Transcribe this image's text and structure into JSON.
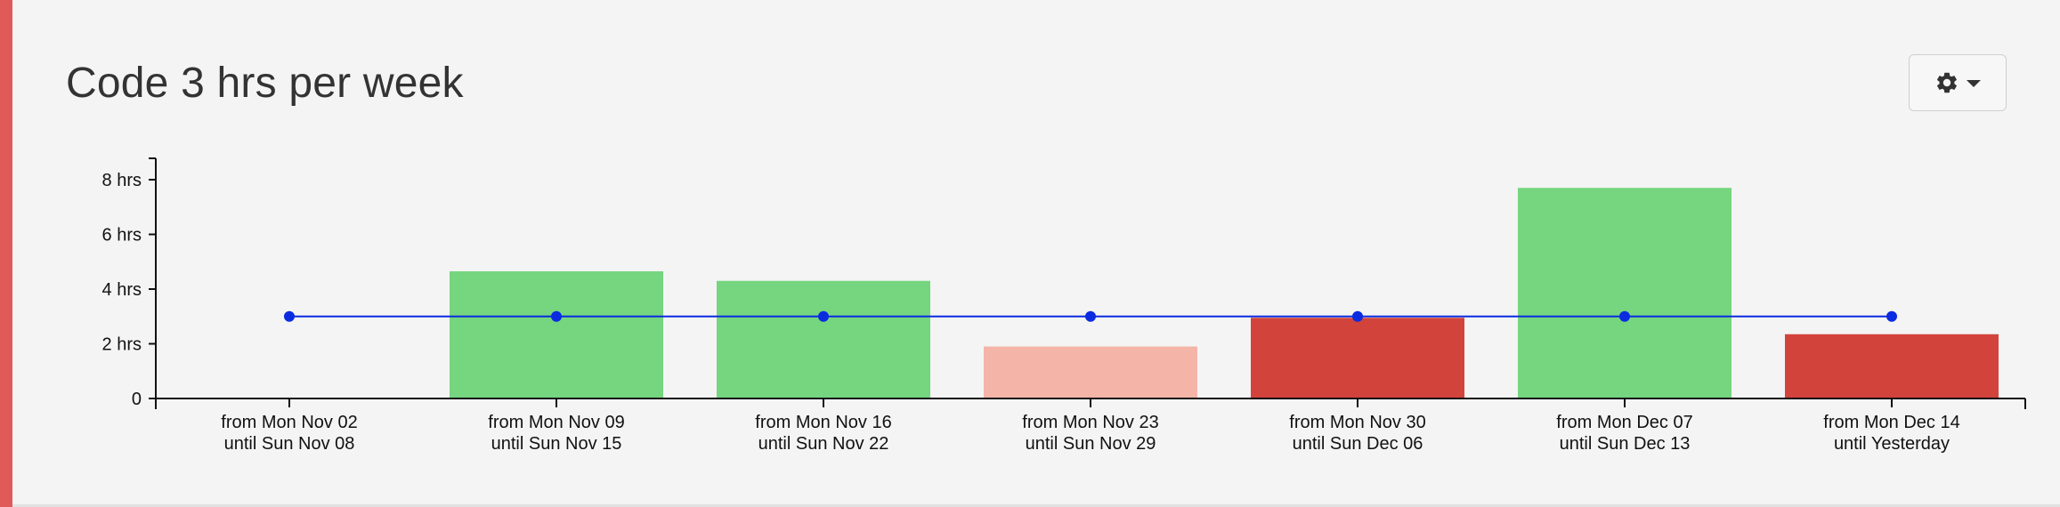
{
  "header": {
    "title": "Code 3 hrs per week",
    "settings_icon": "gear-icon",
    "dropdown_icon": "chevron-down-icon"
  },
  "colors": {
    "accent": "#e05a5a",
    "met": "#76d57f",
    "partial": "#f4b5a8",
    "missed": "#d2433c",
    "goal_line": "#0a2be0"
  },
  "chart_data": {
    "type": "bar",
    "ylabel": "",
    "xlabel": "",
    "ylim": [
      0,
      8.8
    ],
    "yticks": [
      {
        "value": 0,
        "label": "0"
      },
      {
        "value": 2,
        "label": "2 hrs"
      },
      {
        "value": 4,
        "label": "4 hrs"
      },
      {
        "value": 6,
        "label": "6 hrs"
      },
      {
        "value": 8,
        "label": "8 hrs"
      }
    ],
    "categories": [
      [
        "from Mon Nov 02",
        "until Sun Nov 08"
      ],
      [
        "from Mon Nov 09",
        "until Sun Nov 15"
      ],
      [
        "from Mon Nov 16",
        "until Sun Nov 22"
      ],
      [
        "from Mon Nov 23",
        "until Sun Nov 29"
      ],
      [
        "from Mon Nov 30",
        "until Sun Dec 06"
      ],
      [
        "from Mon Dec 07",
        "until Sun Dec 13"
      ],
      [
        "from Mon Dec 14",
        "until Yesterday"
      ]
    ],
    "values": [
      0,
      4.65,
      4.3,
      1.9,
      2.95,
      7.7,
      2.35
    ],
    "bar_status": [
      "none",
      "met",
      "met",
      "partial",
      "missed",
      "met",
      "missed"
    ],
    "goal": {
      "values": [
        3,
        3,
        3,
        3,
        3,
        3,
        3
      ]
    },
    "grid": false,
    "legend": "none"
  }
}
